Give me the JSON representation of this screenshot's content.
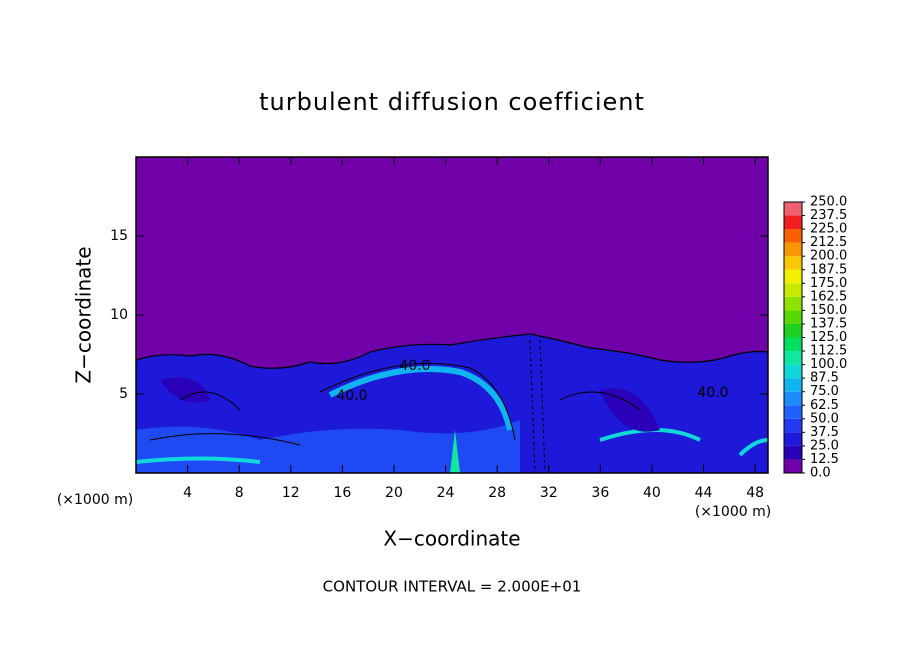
{
  "chart_data": {
    "type": "contour",
    "title": "turbulent diffusion coefficient",
    "x_label": "X−coordinate",
    "y_label": "Z−coordinate",
    "x_unit_left": "(×1000 m)",
    "x_unit_right": "(×1000 m)",
    "footer": "CONTOUR INTERVAL = 2.000E+01",
    "contour_labels": [
      "40.0",
      "40.0",
      "40.0"
    ],
    "xlim": [
      0,
      49
    ],
    "xticks": [
      4,
      8,
      12,
      16,
      20,
      24,
      28,
      32,
      36,
      40,
      44,
      48
    ],
    "ylim": [
      0,
      20
    ],
    "yticks": [
      5,
      10,
      15
    ],
    "colorbar_levels": [
      {
        "value": 0,
        "label": "0.0"
      },
      {
        "value": 12.5,
        "label": "12.5"
      },
      {
        "value": 25,
        "label": "25.0"
      },
      {
        "value": 37.5,
        "label": "37.5"
      },
      {
        "value": 50,
        "label": "50.0"
      },
      {
        "value": 62.5,
        "label": "62.5"
      },
      {
        "value": 75,
        "label": "75.0"
      },
      {
        "value": 87.5,
        "label": "87.5"
      },
      {
        "value": 100,
        "label": "100.0"
      },
      {
        "value": 112.5,
        "label": "112.5"
      },
      {
        "value": 125,
        "label": "125.0"
      },
      {
        "value": 137.5,
        "label": "137.5"
      },
      {
        "value": 150,
        "label": "150.0"
      },
      {
        "value": 162.5,
        "label": "162.5"
      },
      {
        "value": 175,
        "label": "175.0"
      },
      {
        "value": 187.5,
        "label": "187.5"
      },
      {
        "value": 200,
        "label": "200.0"
      },
      {
        "value": 212.5,
        "label": "212.5"
      },
      {
        "value": 225,
        "label": "225.0"
      },
      {
        "value": 237.5,
        "label": "237.5"
      },
      {
        "value": 250,
        "label": "250.0"
      }
    ],
    "colorbar_colors": [
      "#7000a8",
      "#2a00b8",
      "#1e18d8",
      "#2438f0",
      "#2060ff",
      "#1c8cf8",
      "#10b4f0",
      "#10d8d8",
      "#10e8a0",
      "#00e060",
      "#20d020",
      "#58d800",
      "#90e000",
      "#c8e800",
      "#f0f000",
      "#f8c800",
      "#f89800",
      "#f86000",
      "#f02020",
      "#f06070"
    ]
  }
}
